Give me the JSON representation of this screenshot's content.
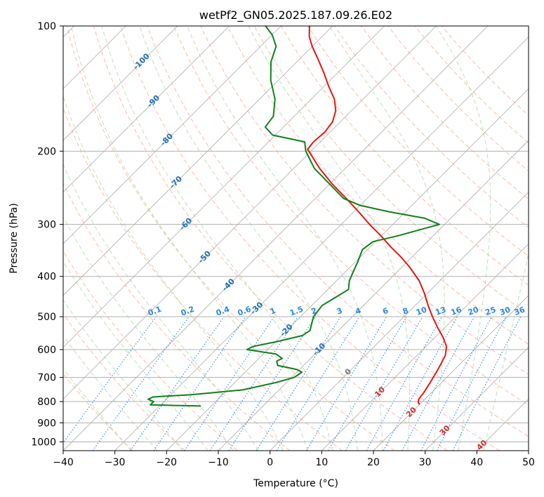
{
  "chart_data": {
    "type": "line",
    "subtype": "skew-t log-p sounding",
    "title": "wetPf2_GN05.2025.187.09.26.E02",
    "xlabel": "Temperature (°C)",
    "ylabel": "Pressure (hPa)",
    "xlim": [
      -40,
      50
    ],
    "ylim": [
      1050,
      100
    ],
    "y_scale": "log",
    "grid": true,
    "x_ticks": [
      -40,
      -30,
      -20,
      -10,
      0,
      10,
      20,
      30,
      40,
      50
    ],
    "x_tick_labels": [
      "−40",
      "−30",
      "−20",
      "−10",
      "0",
      "10",
      "20",
      "30",
      "40",
      "50"
    ],
    "y_ticks": [
      100,
      200,
      300,
      400,
      500,
      600,
      700,
      800,
      900,
      1000
    ],
    "y_tick_labels": [
      "100",
      "200",
      "300",
      "400",
      "500",
      "600",
      "700",
      "800",
      "900",
      "1000"
    ],
    "colors": {
      "temperature": "#e8150f",
      "dewpoint": "#10801a",
      "isotherm": "#9e9e9e",
      "dry_adiabat": "#f7a58a",
      "moist_adiabat": "#a8d6a0",
      "mixing_ratio": "#2f86e0",
      "isotherm_label": "#1f6fb4",
      "zero_isotherm_label": "#7a7a7a",
      "positive_isotherm_label": "#d03030",
      "mixing_ratio_label": "#2f86e0",
      "lcl_curve": "#d6b58e"
    },
    "series": [
      {
        "role": "temperature",
        "points": [
          {
            "p": 812,
            "t": 20.0
          },
          {
            "p": 805,
            "t": 19.4
          },
          {
            "p": 790,
            "t": 18.8
          },
          {
            "p": 760,
            "t": 18.5
          },
          {
            "p": 720,
            "t": 17.8
          },
          {
            "p": 680,
            "t": 17.0
          },
          {
            "p": 650,
            "t": 16.3
          },
          {
            "p": 620,
            "t": 15.5
          },
          {
            "p": 590,
            "t": 14.0
          },
          {
            "p": 560,
            "t": 11.5
          },
          {
            "p": 530,
            "t": 8.5
          },
          {
            "p": 500,
            "t": 5.5
          },
          {
            "p": 470,
            "t": 2.5
          },
          {
            "p": 440,
            "t": -0.5
          },
          {
            "p": 410,
            "t": -4.0
          },
          {
            "p": 380,
            "t": -8.5
          },
          {
            "p": 360,
            "t": -12.0
          },
          {
            "p": 340,
            "t": -16.0
          },
          {
            "p": 320,
            "t": -20.0
          },
          {
            "p": 300,
            "t": -24.5
          },
          {
            "p": 280,
            "t": -29.0
          },
          {
            "p": 260,
            "t": -34.0
          },
          {
            "p": 240,
            "t": -39.5
          },
          {
            "p": 220,
            "t": -45.0
          },
          {
            "p": 205,
            "t": -49.0
          },
          {
            "p": 198,
            "t": -51.0
          },
          {
            "p": 190,
            "t": -51.3
          },
          {
            "p": 180,
            "t": -51.0
          },
          {
            "p": 170,
            "t": -51.5
          },
          {
            "p": 160,
            "t": -53.0
          },
          {
            "p": 150,
            "t": -55.5
          },
          {
            "p": 140,
            "t": -59.0
          },
          {
            "p": 130,
            "t": -62.5
          },
          {
            "p": 120,
            "t": -66.5
          },
          {
            "p": 112,
            "t": -70.0
          },
          {
            "p": 106,
            "t": -72.5
          },
          {
            "p": 100,
            "t": -74.5
          }
        ]
      },
      {
        "role": "dewpoint",
        "points": [
          {
            "p": 820,
            "t": -22.0
          },
          {
            "p": 815,
            "t": -32.0
          },
          {
            "p": 800,
            "t": -32.0
          },
          {
            "p": 790,
            "t": -33.5
          },
          {
            "p": 780,
            "t": -33.0
          },
          {
            "p": 770,
            "t": -26.0
          },
          {
            "p": 750,
            "t": -17.0
          },
          {
            "p": 720,
            "t": -12.0
          },
          {
            "p": 700,
            "t": -9.5
          },
          {
            "p": 680,
            "t": -9.0
          },
          {
            "p": 670,
            "t": -10.5
          },
          {
            "p": 655,
            "t": -15.0
          },
          {
            "p": 640,
            "t": -16.0
          },
          {
            "p": 630,
            "t": -15.5
          },
          {
            "p": 615,
            "t": -17.5
          },
          {
            "p": 600,
            "t": -24.0
          },
          {
            "p": 590,
            "t": -23.5
          },
          {
            "p": 575,
            "t": -20.0
          },
          {
            "p": 555,
            "t": -16.0
          },
          {
            "p": 540,
            "t": -15.5
          },
          {
            "p": 500,
            "t": -17.5
          },
          {
            "p": 470,
            "t": -18.0
          },
          {
            "p": 450,
            "t": -17.0
          },
          {
            "p": 430,
            "t": -16.0
          },
          {
            "p": 410,
            "t": -17.5
          },
          {
            "p": 390,
            "t": -18.5
          },
          {
            "p": 370,
            "t": -19.5
          },
          {
            "p": 345,
            "t": -21.0
          },
          {
            "p": 330,
            "t": -20.5
          },
          {
            "p": 320,
            "t": -17.0
          },
          {
            "p": 300,
            "t": -11.0
          },
          {
            "p": 290,
            "t": -15.0
          },
          {
            "p": 280,
            "t": -23.0
          },
          {
            "p": 270,
            "t": -30.0
          },
          {
            "p": 260,
            "t": -34.5
          },
          {
            "p": 240,
            "t": -40.0
          },
          {
            "p": 220,
            "t": -46.0
          },
          {
            "p": 200,
            "t": -51.0
          },
          {
            "p": 190,
            "t": -53.0
          },
          {
            "p": 183,
            "t": -60.5
          },
          {
            "p": 175,
            "t": -63.5
          },
          {
            "p": 165,
            "t": -64.0
          },
          {
            "p": 150,
            "t": -67.0
          },
          {
            "p": 135,
            "t": -71.5
          },
          {
            "p": 122,
            "t": -75.0
          },
          {
            "p": 112,
            "t": -77.0
          },
          {
            "p": 105,
            "t": -80.0
          },
          {
            "p": 100,
            "t": -83.0
          }
        ]
      }
    ],
    "isotherm_labels": [
      {
        "text": "-100",
        "t": -100
      },
      {
        "text": "-90",
        "t": -90
      },
      {
        "text": "-80",
        "t": -80
      },
      {
        "text": "-70",
        "t": -70
      },
      {
        "text": "-60",
        "t": -60
      },
      {
        "text": "-50",
        "t": -50
      },
      {
        "text": "-40",
        "t": -40
      },
      {
        "text": "-30",
        "t": -30
      },
      {
        "text": "-20",
        "t": -20
      },
      {
        "text": "-10",
        "t": -10
      },
      {
        "text": "0",
        "t": 0
      },
      {
        "text": "10",
        "t": 10
      },
      {
        "text": "20",
        "t": 20
      },
      {
        "text": "30",
        "t": 30
      },
      {
        "text": "40",
        "t": 40
      }
    ],
    "mixing_ratio_labels": [
      {
        "text": "0.1",
        "w": 0.1
      },
      {
        "text": "0.2",
        "w": 0.2
      },
      {
        "text": "0.4",
        "w": 0.4
      },
      {
        "text": "0.6",
        "w": 0.6
      },
      {
        "text": "1",
        "w": 1
      },
      {
        "text": "1.5",
        "w": 1.5
      },
      {
        "text": "2",
        "w": 2
      },
      {
        "text": "3",
        "w": 3
      },
      {
        "text": "4",
        "w": 4
      },
      {
        "text": "6",
        "w": 6
      },
      {
        "text": "8",
        "w": 8
      },
      {
        "text": "10",
        "w": 10
      },
      {
        "text": "13",
        "w": 13
      },
      {
        "text": "16",
        "w": 16
      },
      {
        "text": "20",
        "w": 20
      },
      {
        "text": "25",
        "w": 25
      },
      {
        "text": "30",
        "w": 30
      },
      {
        "text": "36",
        "w": 36
      }
    ]
  }
}
